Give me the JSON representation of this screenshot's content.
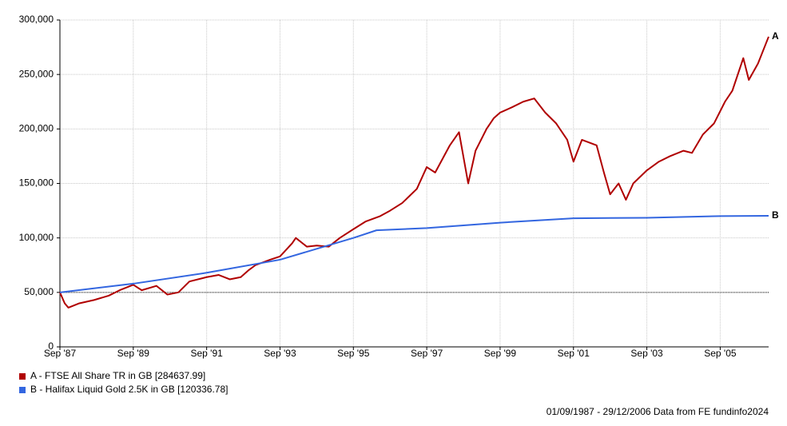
{
  "chart_data": {
    "type": "line",
    "xlim": [
      1987.67,
      2006.99
    ],
    "xticks": [
      {
        "value": 1987.67,
        "label": "Sep '87"
      },
      {
        "value": 1989.67,
        "label": "Sep '89"
      },
      {
        "value": 1991.67,
        "label": "Sep '91"
      },
      {
        "value": 1993.67,
        "label": "Sep '93"
      },
      {
        "value": 1995.67,
        "label": "Sep '95"
      },
      {
        "value": 1997.67,
        "label": "Sep '97"
      },
      {
        "value": 1999.67,
        "label": "Sep '99"
      },
      {
        "value": 2001.67,
        "label": "Sep '01"
      },
      {
        "value": 2003.67,
        "label": "Sep '03"
      },
      {
        "value": 2005.67,
        "label": "Sep '05"
      }
    ],
    "ylim": [
      0,
      300000
    ],
    "yticks": [
      0,
      {
        "value": 50000,
        "label": "50,000"
      },
      {
        "value": 100000,
        "label": "100,000"
      },
      {
        "value": 150000,
        "label": "150,000"
      },
      {
        "value": 200000,
        "label": "200,000"
      },
      {
        "value": 250000,
        "label": "250,000"
      },
      {
        "value": 300000,
        "label": "300,000"
      }
    ],
    "grid": true,
    "baseline": 50000,
    "series": [
      {
        "name": "A - FTSE All Share TR in GB [284637.99]",
        "label": "A",
        "color": "#b00000",
        "x": [
          1987.67,
          1987.8,
          1987.9,
          1988.2,
          1988.6,
          1989.0,
          1989.3,
          1989.67,
          1989.9,
          1990.3,
          1990.6,
          1990.9,
          1991.2,
          1991.67,
          1992.0,
          1992.3,
          1992.6,
          1992.8,
          1993.0,
          1993.4,
          1993.67,
          1994.0,
          1994.1,
          1994.4,
          1994.67,
          1995.0,
          1995.3,
          1995.67,
          1996.0,
          1996.4,
          1996.67,
          1997.0,
          1997.4,
          1997.67,
          1997.9,
          1998.3,
          1998.55,
          1998.8,
          1999.0,
          1999.3,
          1999.5,
          1999.67,
          2000.0,
          2000.3,
          2000.6,
          2000.9,
          2001.2,
          2001.5,
          2001.67,
          2001.9,
          2002.3,
          2002.5,
          2002.67,
          2002.9,
          2003.1,
          2003.3,
          2003.67,
          2004.0,
          2004.3,
          2004.67,
          2004.9,
          2005.2,
          2005.5,
          2005.8,
          2006.0,
          2006.3,
          2006.45,
          2006.7,
          2006.99
        ],
        "values": [
          50000,
          40000,
          36000,
          40000,
          43000,
          47000,
          52000,
          57000,
          52000,
          56000,
          48000,
          50000,
          60000,
          64000,
          66000,
          62000,
          64000,
          70000,
          75000,
          80000,
          83000,
          95000,
          100000,
          92000,
          93000,
          92000,
          100000,
          108000,
          115000,
          120000,
          125000,
          132000,
          145000,
          165000,
          160000,
          185000,
          197000,
          150000,
          180000,
          200000,
          210000,
          215000,
          220000,
          225000,
          228000,
          215000,
          205000,
          190000,
          170000,
          190000,
          185000,
          160000,
          140000,
          150000,
          135000,
          150000,
          162000,
          170000,
          175000,
          180000,
          178000,
          195000,
          205000,
          225000,
          235000,
          265000,
          245000,
          260000,
          284638
        ]
      },
      {
        "name": "B - Halifax Liquid Gold 2.5K in GB [120336.78]",
        "label": "B",
        "color": "#3366e0",
        "x": [
          1987.67,
          1989.67,
          1991.67,
          1993.67,
          1994.67,
          1995.67,
          1996.3,
          1997.67,
          1999.67,
          2001.67,
          2003.67,
          2005.67,
          2006.99
        ],
        "values": [
          50000,
          58000,
          68000,
          80000,
          90000,
          100000,
          107000,
          109000,
          114000,
          118000,
          118500,
          120000,
          120337
        ]
      }
    ],
    "note": "01/09/1987 - 29/12/2006 Data from FE fundinfo2024"
  }
}
